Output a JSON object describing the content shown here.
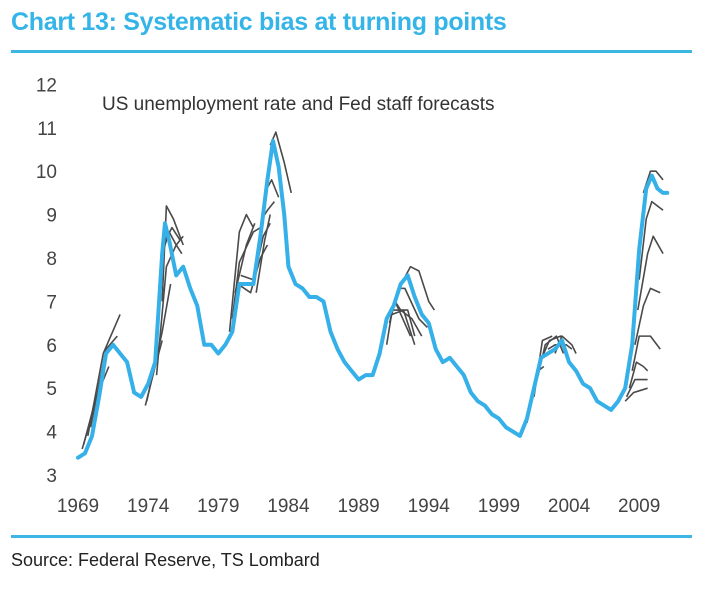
{
  "header": {
    "title": "Chart 13: Systematic bias at turning points"
  },
  "footer": {
    "source": "Source: Federal Reserve, TS Lombard"
  },
  "colors": {
    "actual": "#35b0e8",
    "forecast": "#4a4a4a",
    "title": "#35b4e8"
  },
  "chart_data": {
    "type": "line",
    "title": "Chart 13: Systematic bias at turning points",
    "subtitle": "US unemployment rate and Fed staff forecasts",
    "xlabel": "",
    "ylabel": "",
    "xlim": [
      1969,
      2012
    ],
    "ylim": [
      3,
      12
    ],
    "x_ticks": [
      "1969",
      "1974",
      "1979",
      "1984",
      "1989",
      "1994",
      "1999",
      "2004",
      "2009"
    ],
    "y_ticks": [
      "3",
      "4",
      "5",
      "6",
      "7",
      "8",
      "9",
      "10",
      "11",
      "12"
    ],
    "grid": false,
    "legend": "none",
    "series": [
      {
        "name": "US unemployment rate",
        "points": [
          [
            1969,
            3.4
          ],
          [
            1969.5,
            3.5
          ],
          [
            1970,
            3.9
          ],
          [
            1970.5,
            4.8
          ],
          [
            1971,
            5.8
          ],
          [
            1971.5,
            6.0
          ],
          [
            1972,
            5.8
          ],
          [
            1972.5,
            5.6
          ],
          [
            1973,
            4.9
          ],
          [
            1973.5,
            4.8
          ],
          [
            1974,
            5.1
          ],
          [
            1974.5,
            5.6
          ],
          [
            1975,
            8.1
          ],
          [
            1975.2,
            8.8
          ],
          [
            1975.5,
            8.4
          ],
          [
            1976,
            7.6
          ],
          [
            1976.5,
            7.8
          ],
          [
            1977,
            7.3
          ],
          [
            1977.5,
            6.9
          ],
          [
            1978,
            6.0
          ],
          [
            1978.5,
            6.0
          ],
          [
            1979,
            5.8
          ],
          [
            1979.5,
            6.0
          ],
          [
            1980,
            6.3
          ],
          [
            1980.5,
            7.4
          ],
          [
            1981,
            7.4
          ],
          [
            1981.5,
            7.4
          ],
          [
            1982,
            8.5
          ],
          [
            1982.5,
            9.8
          ],
          [
            1982.9,
            10.7
          ],
          [
            1983.3,
            10.1
          ],
          [
            1983.7,
            9.0
          ],
          [
            1984,
            7.8
          ],
          [
            1984.5,
            7.4
          ],
          [
            1985,
            7.3
          ],
          [
            1985.5,
            7.1
          ],
          [
            1986,
            7.1
          ],
          [
            1986.5,
            7.0
          ],
          [
            1987,
            6.3
          ],
          [
            1987.5,
            5.9
          ],
          [
            1988,
            5.6
          ],
          [
            1988.5,
            5.4
          ],
          [
            1989,
            5.2
          ],
          [
            1989.5,
            5.3
          ],
          [
            1990,
            5.3
          ],
          [
            1990.5,
            5.8
          ],
          [
            1991,
            6.6
          ],
          [
            1991.5,
            6.9
          ],
          [
            1992,
            7.4
          ],
          [
            1992.5,
            7.6
          ],
          [
            1993,
            7.1
          ],
          [
            1993.5,
            6.7
          ],
          [
            1994,
            6.5
          ],
          [
            1994.5,
            5.9
          ],
          [
            1995,
            5.6
          ],
          [
            1995.5,
            5.7
          ],
          [
            1996,
            5.5
          ],
          [
            1996.5,
            5.3
          ],
          [
            1997,
            4.9
          ],
          [
            1997.5,
            4.7
          ],
          [
            1998,
            4.6
          ],
          [
            1998.5,
            4.4
          ],
          [
            1999,
            4.3
          ],
          [
            1999.5,
            4.1
          ],
          [
            2000,
            4.0
          ],
          [
            2000.5,
            3.9
          ],
          [
            2001,
            4.3
          ],
          [
            2001.5,
            5.0
          ],
          [
            2002,
            5.7
          ],
          [
            2002.5,
            5.8
          ],
          [
            2003,
            5.9
          ],
          [
            2003.5,
            6.1
          ],
          [
            2004,
            5.6
          ],
          [
            2004.5,
            5.4
          ],
          [
            2005,
            5.1
          ],
          [
            2005.5,
            5.0
          ],
          [
            2006,
            4.7
          ],
          [
            2006.5,
            4.6
          ],
          [
            2007,
            4.5
          ],
          [
            2007.5,
            4.7
          ],
          [
            2008,
            5.0
          ],
          [
            2008.5,
            6.0
          ],
          [
            2009,
            8.2
          ],
          [
            2009.5,
            9.6
          ],
          [
            2009.9,
            9.9
          ],
          [
            2010.3,
            9.6
          ],
          [
            2010.7,
            9.5
          ],
          [
            2011,
            9.5
          ]
        ]
      },
      {
        "name": "Fed staff forecasts",
        "forecasts": [
          [
            [
              1969.3,
              3.6
            ],
            [
              1970.2,
              4.6
            ],
            [
              1970.7,
              5.0
            ]
          ],
          [
            [
              1969.4,
              3.7
            ],
            [
              1970.3,
              4.8
            ],
            [
              1971.2,
              5.5
            ]
          ],
          [
            [
              1969.7,
              3.9
            ],
            [
              1970.8,
              5.8
            ],
            [
              1971.6,
              6.4
            ],
            [
              1972,
              6.7
            ]
          ],
          [
            [
              1969.9,
              4.1
            ],
            [
              1971,
              5.9
            ],
            [
              1971.8,
              6.2
            ]
          ],
          [
            [
              1973.8,
              4.6
            ],
            [
              1974.5,
              5.5
            ],
            [
              1975,
              6.1
            ]
          ],
          [
            [
              1973.9,
              4.7
            ],
            [
              1975,
              6.3
            ],
            [
              1975.6,
              7.4
            ]
          ],
          [
            [
              1974.6,
              5.3
            ],
            [
              1975.3,
              7.8
            ],
            [
              1976,
              8.3
            ],
            [
              1976.5,
              8.5
            ]
          ],
          [
            [
              1975,
              7.0
            ],
            [
              1975.3,
              9.2
            ],
            [
              1975.8,
              8.9
            ],
            [
              1976.5,
              8.3
            ]
          ],
          [
            [
              1975.1,
              8.2
            ],
            [
              1975.5,
              8.6
            ],
            [
              1976,
              8.3
            ],
            [
              1976.4,
              8.1
            ]
          ],
          [
            [
              1975.2,
              8.4
            ],
            [
              1975.7,
              8.7
            ],
            [
              1976.3,
              8.4
            ]
          ],
          [
            [
              1979.8,
              6.3
            ],
            [
              1980.5,
              8.6
            ],
            [
              1981,
              9.0
            ],
            [
              1981.5,
              8.7
            ]
          ],
          [
            [
              1980,
              6.6
            ],
            [
              1980.5,
              7.9
            ],
            [
              1981.5,
              8.6
            ],
            [
              1982,
              8.7
            ]
          ],
          [
            [
              1980.2,
              7.2
            ],
            [
              1981,
              8.3
            ],
            [
              1981.6,
              8.8
            ]
          ],
          [
            [
              1980.4,
              7.4
            ],
            [
              1981.3,
              7.2
            ],
            [
              1982,
              8.0
            ],
            [
              1982.5,
              8.3
            ]
          ],
          [
            [
              1980.6,
              7.6
            ],
            [
              1981.5,
              7.5
            ],
            [
              1982.2,
              8.5
            ],
            [
              1982.7,
              8.8
            ]
          ],
          [
            [
              1981.7,
              7.2
            ],
            [
              1982.3,
              8.4
            ],
            [
              1982.7,
              9.0
            ]
          ],
          [
            [
              1982.1,
              8.9
            ],
            [
              1982.5,
              9.1
            ],
            [
              1983,
              9.3
            ]
          ],
          [
            [
              1982.3,
              9.5
            ],
            [
              1982.8,
              9.8
            ],
            [
              1983.3,
              9.4
            ]
          ],
          [
            [
              1982.7,
              10.6
            ],
            [
              1983.1,
              10.9
            ],
            [
              1983.7,
              10.2
            ],
            [
              1984.2,
              9.5
            ]
          ],
          [
            [
              1991,
              6.0
            ],
            [
              1991.4,
              6.8
            ],
            [
              1992.5,
              6.8
            ],
            [
              1993,
              6.2
            ]
          ],
          [
            [
              1991.2,
              6.5
            ],
            [
              1991.6,
              7.0
            ],
            [
              1992.7,
              6.2
            ]
          ],
          [
            [
              1991.4,
              6.7
            ],
            [
              1992.2,
              6.8
            ],
            [
              1993,
              6.0
            ]
          ],
          [
            [
              1991.6,
              7.0
            ],
            [
              1992,
              6.8
            ],
            [
              1992.8,
              6.6
            ],
            [
              1993.5,
              6.2
            ]
          ],
          [
            [
              1991.8,
              7.3
            ],
            [
              1992.3,
              7.3
            ],
            [
              1993.3,
              6.6
            ],
            [
              1993.9,
              6.4
            ]
          ],
          [
            [
              1992.2,
              7.5
            ],
            [
              1992.7,
              7.8
            ],
            [
              1993.3,
              7.7
            ],
            [
              1994,
              7.0
            ],
            [
              1994.4,
              6.8
            ]
          ],
          [
            [
              2001,
              4.2
            ],
            [
              2001.8,
              5.4
            ],
            [
              2002.2,
              5.5
            ]
          ],
          [
            [
              2001.5,
              4.8
            ],
            [
              2002.1,
              6.1
            ],
            [
              2002.8,
              6.2
            ]
          ],
          [
            [
              2001.8,
              5.3
            ],
            [
              2002.3,
              6.0
            ],
            [
              2003.1,
              6.2
            ],
            [
              2003.6,
              5.8
            ]
          ],
          [
            [
              2002.2,
              5.8
            ],
            [
              2002.6,
              6.1
            ],
            [
              2003.4,
              6.2
            ],
            [
              2003.9,
              5.7
            ]
          ],
          [
            [
              2002.5,
              5.9
            ],
            [
              2003,
              6.0
            ],
            [
              2003.8,
              6.0
            ],
            [
              2004.2,
              5.9
            ]
          ],
          [
            [
              2003,
              5.8
            ],
            [
              2003.5,
              6.2
            ],
            [
              2004.2,
              6.0
            ],
            [
              2004.5,
              5.8
            ]
          ],
          [
            [
              2008,
              4.7
            ],
            [
              2008.6,
              4.9
            ],
            [
              2009.6,
              5.0
            ]
          ],
          [
            [
              2008.1,
              4.8
            ],
            [
              2008.7,
              5.2
            ],
            [
              2009.6,
              5.2
            ]
          ],
          [
            [
              2008.3,
              5.0
            ],
            [
              2008.8,
              5.6
            ],
            [
              2009.3,
              5.5
            ],
            [
              2009.6,
              5.4
            ]
          ],
          [
            [
              2008.5,
              5.4
            ],
            [
              2009,
              6.2
            ],
            [
              2009.8,
              6.2
            ],
            [
              2010.5,
              5.9
            ]
          ],
          [
            [
              2008.7,
              6.0
            ],
            [
              2009.3,
              6.9
            ],
            [
              2009.8,
              7.3
            ],
            [
              2010.5,
              7.2
            ]
          ],
          [
            [
              2008.9,
              6.8
            ],
            [
              2009.6,
              8.1
            ],
            [
              2010,
              8.5
            ],
            [
              2010.7,
              8.1
            ]
          ],
          [
            [
              2009,
              7.5
            ],
            [
              2009.5,
              8.9
            ],
            [
              2009.9,
              9.3
            ],
            [
              2010.7,
              9.1
            ]
          ],
          [
            [
              2009.3,
              9.5
            ],
            [
              2009.8,
              10.0
            ],
            [
              2010.2,
              10.0
            ],
            [
              2010.7,
              9.8
            ]
          ]
        ]
      }
    ]
  }
}
